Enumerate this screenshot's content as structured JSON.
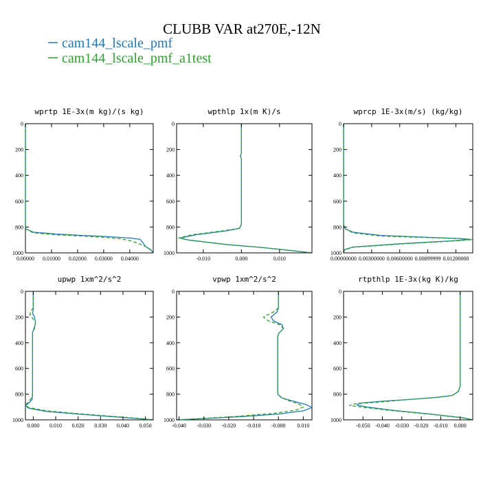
{
  "figure": {
    "title": "CLUBB VAR at270E,-12N",
    "legend": [
      {
        "label": "cam144_lscale_pmf",
        "color": "#1f77b4",
        "dash": "solid"
      },
      {
        "label": "cam144_lscale_pmf_a1test",
        "color": "#2ca02c",
        "dash": "dashed"
      }
    ]
  },
  "chart_data": [
    {
      "type": "line",
      "title": "wprtp  1E-3x(m kg)/(s kg)",
      "xlabel": "",
      "ylabel": "",
      "xlim": [
        0.0,
        0.049
      ],
      "ylim": [
        1000,
        0
      ],
      "grid": false,
      "xticks": [
        0.0,
        0.01,
        0.02,
        0.03,
        0.04
      ],
      "xtick_labels": [
        "0.00000",
        "0.01000",
        "0.02000",
        "0.03000",
        "0.04000"
      ],
      "yticks": [
        0,
        200,
        400,
        600,
        800,
        1000
      ],
      "series": [
        {
          "name": "cam144_lscale_pmf",
          "x": [
            0.0,
            0.0,
            0.0,
            0.0002,
            0.003,
            0.012,
            0.022,
            0.032,
            0.04,
            0.044,
            0.045,
            0.046,
            0.048,
            0.049
          ],
          "y": [
            0,
            400,
            800,
            815,
            840,
            855,
            865,
            875,
            885,
            895,
            920,
            950,
            975,
            1000
          ]
        },
        {
          "name": "cam144_lscale_pmf_a1test",
          "x": [
            0.0,
            0.0,
            0.0,
            0.0002,
            0.003,
            0.012,
            0.022,
            0.03,
            0.036,
            0.04,
            0.043,
            0.046,
            0.048,
            0.049
          ],
          "y": [
            0,
            400,
            800,
            815,
            845,
            860,
            870,
            880,
            890,
            905,
            925,
            950,
            975,
            1000
          ]
        }
      ]
    },
    {
      "type": "line",
      "title": "wpthlp  1x(m K)/s",
      "xlabel": "",
      "ylabel": "",
      "xlim": [
        -0.017,
        0.0185
      ],
      "ylim": [
        1000,
        0
      ],
      "grid": false,
      "xticks": [
        -0.01,
        0.0,
        0.01
      ],
      "xtick_labels": [
        "-0.010",
        "0.000",
        "0.010"
      ],
      "yticks": [
        0,
        200,
        400,
        600,
        800,
        1000
      ],
      "series": [
        {
          "name": "cam144_lscale_pmf",
          "x": [
            0.0,
            0.0,
            -0.0003,
            0.0,
            0.0,
            -0.0005,
            -0.004,
            -0.012,
            -0.016,
            -0.014,
            -0.004,
            0.006,
            0.014,
            0.0185
          ],
          "y": [
            0,
            230,
            250,
            270,
            780,
            810,
            830,
            860,
            885,
            900,
            935,
            960,
            985,
            1000
          ]
        },
        {
          "name": "cam144_lscale_pmf_a1test",
          "x": [
            0.0,
            0.0,
            -0.0003,
            0.0,
            0.0,
            -0.0006,
            -0.005,
            -0.013,
            -0.0165,
            -0.014,
            -0.004,
            0.006,
            0.014,
            0.0185
          ],
          "y": [
            0,
            230,
            250,
            270,
            780,
            810,
            830,
            860,
            885,
            900,
            935,
            960,
            985,
            1000
          ]
        }
      ]
    },
    {
      "type": "line",
      "title": "wprcp  1E-3x(m/s) (kg/kg)",
      "xlabel": "",
      "ylabel": "",
      "xlim": [
        0.0,
        0.0138
      ],
      "ylim": [
        1000,
        0
      ],
      "grid": false,
      "xticks": [
        0.0,
        0.003,
        0.006,
        0.009,
        0.012
      ],
      "xtick_labels": [
        "0.00000000",
        "0.00300000",
        "0.00600000",
        "0.00899999",
        "0.01200000"
      ],
      "yticks": [
        0,
        200,
        400,
        600,
        800,
        1000
      ],
      "series": [
        {
          "name": "cam144_lscale_pmf",
          "x": [
            0.0,
            0.0,
            0.0002,
            0.001,
            0.004,
            0.009,
            0.012,
            0.0135,
            0.012,
            0.006,
            0.001,
            0.0001,
            0.0
          ],
          "y": [
            0,
            780,
            815,
            840,
            865,
            880,
            888,
            895,
            905,
            930,
            955,
            975,
            1000
          ]
        },
        {
          "name": "cam144_lscale_pmf_a1test",
          "x": [
            0.0,
            0.0,
            0.0002,
            0.001,
            0.004,
            0.009,
            0.0125,
            0.0138,
            0.012,
            0.006,
            0.001,
            0.0001,
            0.0
          ],
          "y": [
            0,
            780,
            815,
            845,
            870,
            882,
            890,
            897,
            907,
            932,
            957,
            977,
            1000
          ]
        }
      ]
    },
    {
      "type": "line",
      "title": "upwp  1xm^2/s^2",
      "xlabel": "",
      "ylabel": "",
      "xlim": [
        -0.0035,
        0.0535
      ],
      "ylim": [
        1000,
        0
      ],
      "grid": false,
      "xticks": [
        0.0,
        0.01,
        0.02,
        0.03,
        0.04,
        0.05
      ],
      "xtick_labels": [
        "0.000",
        "0.010",
        "0.020",
        "0.030",
        "0.040",
        "0.050"
      ],
      "yticks": [
        0,
        200,
        400,
        600,
        800,
        1000
      ],
      "series": [
        {
          "name": "cam144_lscale_pmf",
          "x": [
            0.0,
            0.0,
            0.0,
            -0.0003,
            0.0005,
            0.001,
            0.0005,
            -0.0003,
            -0.0003,
            -0.0005,
            -0.002,
            -0.0035,
            -0.002,
            0.006,
            0.02,
            0.035,
            0.048,
            0.0535
          ],
          "y": [
            0,
            130,
            140,
            170,
            200,
            240,
            280,
            320,
            800,
            840,
            870,
            890,
            910,
            935,
            955,
            975,
            992,
            1000
          ]
        },
        {
          "name": "cam144_lscale_pmf_a1test",
          "x": [
            0.0,
            0.0,
            -0.001,
            -0.0015,
            -0.0003,
            0.001,
            0.0005,
            -0.0003,
            -0.0003,
            -0.001,
            -0.0025,
            -0.0035,
            -0.002,
            0.006,
            0.02,
            0.035,
            0.048,
            0.0535
          ],
          "y": [
            0,
            130,
            150,
            180,
            210,
            240,
            290,
            320,
            800,
            835,
            865,
            885,
            905,
            930,
            952,
            972,
            990,
            1000
          ]
        }
      ]
    },
    {
      "type": "line",
      "title": "vpwp  1xm^2/s^2",
      "xlabel": "",
      "ylabel": "",
      "xlim": [
        -0.041,
        0.0135
      ],
      "ylim": [
        1000,
        0
      ],
      "grid": false,
      "xticks": [
        -0.04,
        -0.03,
        -0.02,
        -0.01,
        0.0,
        0.01
      ],
      "xtick_labels": [
        "-0.040",
        "-0.030",
        "-0.020",
        "-0.010",
        "-0.000",
        "0.010"
      ],
      "yticks": [
        0,
        200,
        400,
        600,
        800,
        1000
      ],
      "series": [
        {
          "name": "cam144_lscale_pmf",
          "x": [
            0.0,
            0.0,
            -0.0005,
            -0.003,
            -0.002,
            0.0015,
            0.002,
            0.0,
            -0.0003,
            -0.0003,
            0.0015,
            0.006,
            0.011,
            0.0135,
            0.01,
            0.0,
            -0.015,
            -0.03,
            -0.041
          ],
          "y": [
            0,
            130,
            160,
            200,
            230,
            260,
            290,
            330,
            360,
            800,
            830,
            855,
            880,
            905,
            930,
            955,
            975,
            990,
            1000
          ]
        },
        {
          "name": "cam144_lscale_pmf_a1test",
          "x": [
            0.0,
            0.0,
            -0.002,
            -0.006,
            -0.004,
            0.0005,
            0.002,
            0.0,
            -0.0003,
            -0.0003,
            0.001,
            0.004,
            0.008,
            0.01,
            0.007,
            -0.002,
            -0.016,
            -0.03,
            -0.041
          ],
          "y": [
            0,
            130,
            160,
            200,
            230,
            260,
            290,
            330,
            360,
            800,
            825,
            850,
            875,
            900,
            925,
            950,
            972,
            988,
            1000
          ]
        }
      ]
    },
    {
      "type": "line",
      "title": "rtpthlp  1E-3x(kg K)/kg",
      "xlabel": "",
      "ylabel": "",
      "xlim": [
        -0.06,
        0.0065
      ],
      "ylim": [
        1000,
        0
      ],
      "grid": false,
      "xticks": [
        -0.05,
        -0.04,
        -0.03,
        -0.02,
        -0.01,
        0.0
      ],
      "xtick_labels": [
        "-0.050",
        "-0.040",
        "-0.030",
        "-0.020",
        "-0.010",
        "0.000"
      ],
      "yticks": [
        0,
        200,
        400,
        600,
        800,
        1000
      ],
      "series": [
        {
          "name": "cam144_lscale_pmf",
          "x": [
            0.0,
            0.0,
            -0.001,
            -0.004,
            -0.012,
            -0.025,
            -0.04,
            -0.052,
            -0.053,
            -0.048,
            -0.035,
            -0.015,
            0.002,
            0.0065
          ],
          "y": [
            0,
            740,
            780,
            810,
            825,
            840,
            855,
            870,
            885,
            900,
            925,
            955,
            985,
            1000
          ]
        },
        {
          "name": "cam144_lscale_pmf_a1test",
          "x": [
            0.0,
            0.0,
            -0.001,
            -0.004,
            -0.012,
            -0.025,
            -0.04,
            -0.054,
            -0.057,
            -0.05,
            -0.036,
            -0.015,
            0.002,
            0.0065
          ],
          "y": [
            0,
            740,
            780,
            810,
            825,
            840,
            860,
            875,
            888,
            902,
            927,
            957,
            986,
            1000
          ]
        }
      ]
    }
  ]
}
